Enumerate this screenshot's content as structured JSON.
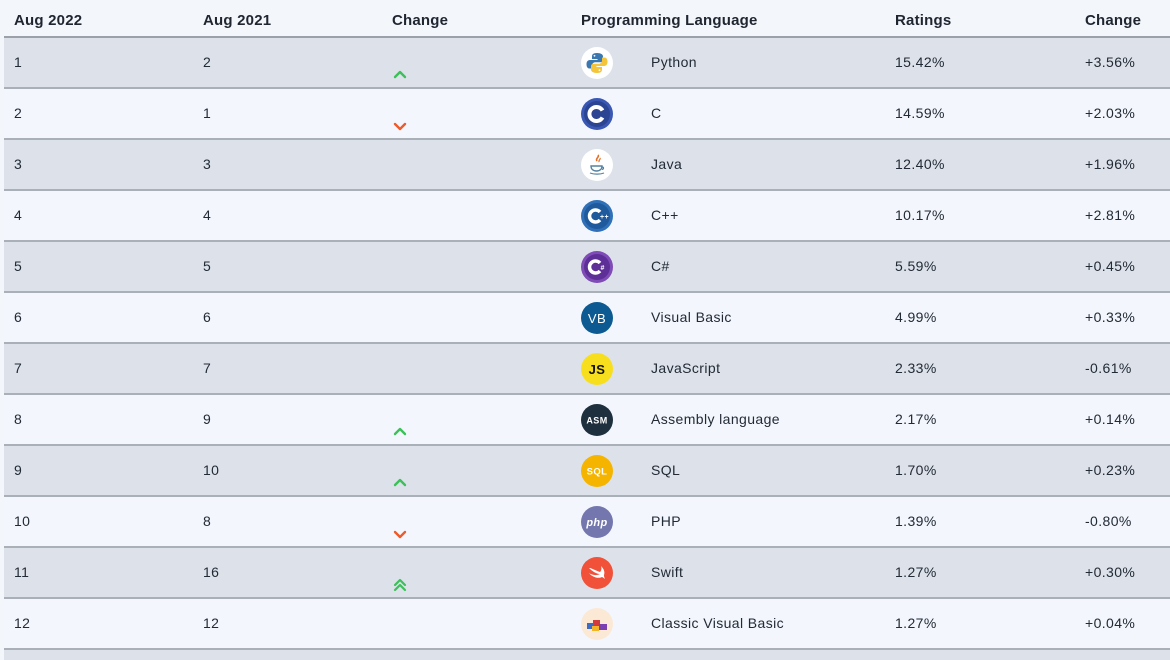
{
  "headers": {
    "current": "Aug 2022",
    "previous": "Aug 2021",
    "change": "Change",
    "language": "Programming Language",
    "ratings": "Ratings",
    "delta": "Change"
  },
  "colors": {
    "up": "#3cc15a",
    "down": "#ee5a2a"
  },
  "rows": [
    {
      "current": "1",
      "previous": "2",
      "trend": "up",
      "icon": "python-logo-icon",
      "language": "Python",
      "rating": "15.42%",
      "delta": "+3.56%"
    },
    {
      "current": "2",
      "previous": "1",
      "trend": "down",
      "icon": "c-logo-icon",
      "language": "C",
      "rating": "14.59%",
      "delta": "+2.03%"
    },
    {
      "current": "3",
      "previous": "3",
      "trend": "none",
      "icon": "java-logo-icon",
      "language": "Java",
      "rating": "12.40%",
      "delta": "+1.96%"
    },
    {
      "current": "4",
      "previous": "4",
      "trend": "none",
      "icon": "cpp-logo-icon",
      "language": "C++",
      "rating": "10.17%",
      "delta": "+2.81%"
    },
    {
      "current": "5",
      "previous": "5",
      "trend": "none",
      "icon": "csharp-logo-icon",
      "language": "C#",
      "rating": "5.59%",
      "delta": "+0.45%"
    },
    {
      "current": "6",
      "previous": "6",
      "trend": "none",
      "icon": "visual-basic-logo-icon",
      "language": "Visual Basic",
      "rating": "4.99%",
      "delta": "+0.33%",
      "badge": "VB"
    },
    {
      "current": "7",
      "previous": "7",
      "trend": "none",
      "icon": "javascript-logo-icon",
      "language": "JavaScript",
      "rating": "2.33%",
      "delta": "-0.61%",
      "badge": "JS"
    },
    {
      "current": "8",
      "previous": "9",
      "trend": "up",
      "icon": "assembly-logo-icon",
      "language": "Assembly language",
      "rating": "2.17%",
      "delta": "+0.14%",
      "badge": "ASM"
    },
    {
      "current": "9",
      "previous": "10",
      "trend": "up",
      "icon": "sql-logo-icon",
      "language": "SQL",
      "rating": "1.70%",
      "delta": "+0.23%",
      "badge": "SQL"
    },
    {
      "current": "10",
      "previous": "8",
      "trend": "down",
      "icon": "php-logo-icon",
      "language": "PHP",
      "rating": "1.39%",
      "delta": "-0.80%",
      "badge": "php"
    },
    {
      "current": "11",
      "previous": "16",
      "trend": "up-double",
      "icon": "swift-logo-icon",
      "language": "Swift",
      "rating": "1.27%",
      "delta": "+0.30%"
    },
    {
      "current": "12",
      "previous": "12",
      "trend": "none",
      "icon": "classic-visual-basic-logo-icon",
      "language": "Classic Visual Basic",
      "rating": "1.27%",
      "delta": "+0.04%"
    }
  ]
}
